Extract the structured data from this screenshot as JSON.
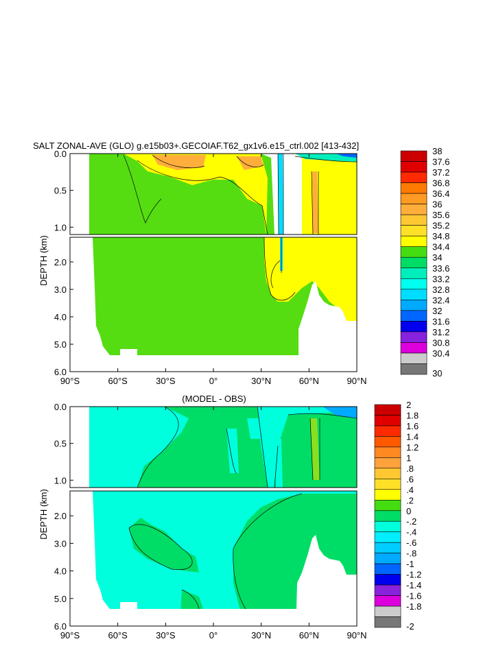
{
  "chart_data": [
    {
      "type": "heatmap",
      "title": "SALT ZONAL-AVE (GLO) g.e15b03+.GECOIAF.T62_gx1v6.e15_ctrl.002 [413-432]",
      "ylabel": "DEPTH (km)",
      "x_ticks": [
        "90°S",
        "60°S",
        "30°S",
        "0°",
        "30°N",
        "60°N",
        "90°N"
      ],
      "y_ticks_upper": [
        "0.0",
        "0.5",
        "1.0"
      ],
      "y_ticks_lower": [
        "2.0",
        "3.0",
        "4.0",
        "5.0",
        "6.0"
      ],
      "xlim": [
        -90,
        90
      ],
      "ylim_upper": [
        0,
        1.1
      ],
      "ylim_lower": [
        1.1,
        6.0
      ],
      "colorbar_labels": [
        "38",
        "37.6",
        "37.2",
        "36.8",
        "36.4",
        "36",
        "35.6",
        "35.2",
        "34.8",
        "34.4",
        "34",
        "33.6",
        "33.2",
        "32.8",
        "32.4",
        "32",
        "31.6",
        "31.2",
        "30.8",
        "30.4",
        "30"
      ],
      "colorbar_colors": [
        "#cc0000",
        "#e00000",
        "#ff2a00",
        "#ff7a00",
        "#ff9a22",
        "#ffae3c",
        "#ffc832",
        "#ffe028",
        "#ffff00",
        "#44dd11",
        "#00dd66",
        "#00eebb",
        "#00ffee",
        "#00ddff",
        "#00aaff",
        "#0066ff",
        "#0000ee",
        "#8822dd",
        "#dd00dd",
        "#cccccc",
        "#777777"
      ]
    },
    {
      "type": "heatmap",
      "title": "(MODEL - OBS)",
      "ylabel": "DEPTH (km)",
      "x_ticks": [
        "90°S",
        "60°S",
        "30°S",
        "0°",
        "30°N",
        "60°N",
        "90°N"
      ],
      "y_ticks_upper": [
        "0.0",
        "0.5",
        "1.0"
      ],
      "y_ticks_lower": [
        "2.0",
        "3.0",
        "4.0",
        "5.0",
        "6.0"
      ],
      "xlim": [
        -90,
        90
      ],
      "ylim_upper": [
        0,
        1.1
      ],
      "ylim_lower": [
        1.1,
        6.0
      ],
      "colorbar_labels": [
        "2",
        "1.8",
        "1.6",
        "1.4",
        "1.2",
        "1",
        ".8",
        ".6",
        ".4",
        ".2",
        "0",
        "-.2",
        "-.4",
        "-.6",
        "-.8",
        "-1",
        "-1.2",
        "-1.4",
        "-1.6",
        "-1.8",
        "-2"
      ],
      "colorbar_colors": [
        "#cc0000",
        "#e00000",
        "#ff2a00",
        "#ff5a00",
        "#ff8a22",
        "#ffa23c",
        "#ffc832",
        "#ffe028",
        "#ffff00",
        "#44dd11",
        "#00dd66",
        "#00ffdd",
        "#00eeff",
        "#00ccff",
        "#00aaff",
        "#0066ff",
        "#0000ee",
        "#8822dd",
        "#dd00dd",
        "#cccccc",
        "#777777"
      ]
    }
  ],
  "colors": {
    "land": "#ffffff",
    "salt_green": "#55dd11",
    "salt_yellow": "#ffff00",
    "salt_orange": "#ffae3c",
    "diff_cyan": "#00ffdd",
    "diff_green": "#00dd66",
    "diff_yellow": "#88e020"
  }
}
